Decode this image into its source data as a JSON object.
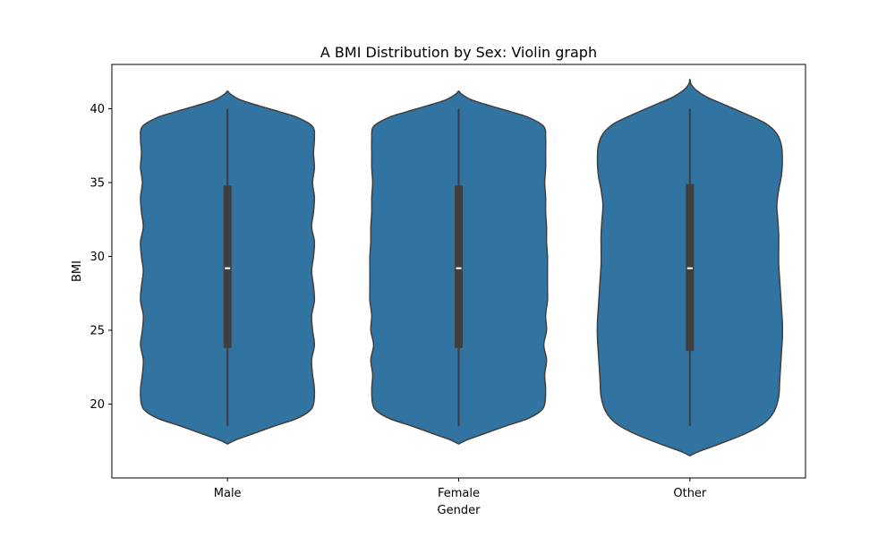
{
  "colors": {
    "violin_fill": "#3274a1",
    "violin_edge": "#3f3f3f",
    "box": "#3f3f3f",
    "median": "#ffffff",
    "axes": "#000000"
  },
  "chart_data": {
    "type": "violin",
    "title": "A BMI Distribution by Sex: Violin graph",
    "xlabel": "Gender",
    "ylabel": "BMI",
    "categories": [
      "Male",
      "Female",
      "Other"
    ],
    "ylim": [
      15.0,
      43.0
    ],
    "yticks": [
      20,
      25,
      30,
      35,
      40
    ],
    "grid": false,
    "series": [
      {
        "category": "Male",
        "whisker": [
          18.5,
          40.0
        ],
        "q1": 23.8,
        "median": 29.2,
        "q3": 34.8,
        "extent": [
          17.3,
          41.2
        ],
        "density": [
          [
            17.3,
            0.0
          ],
          [
            17.6,
            0.1
          ],
          [
            18.0,
            0.28
          ],
          [
            18.5,
            0.5
          ],
          [
            19.0,
            0.74
          ],
          [
            19.5,
            0.88
          ],
          [
            20.0,
            0.93
          ],
          [
            21.0,
            0.94
          ],
          [
            22.0,
            0.92
          ],
          [
            23.0,
            0.91
          ],
          [
            24.0,
            0.94
          ],
          [
            25.0,
            0.92
          ],
          [
            26.0,
            0.91
          ],
          [
            27.0,
            0.94
          ],
          [
            28.0,
            0.93
          ],
          [
            29.0,
            0.91
          ],
          [
            30.0,
            0.93
          ],
          [
            31.0,
            0.94
          ],
          [
            32.0,
            0.91
          ],
          [
            33.0,
            0.93
          ],
          [
            34.0,
            0.94
          ],
          [
            35.0,
            0.92
          ],
          [
            36.0,
            0.94
          ],
          [
            37.0,
            0.93
          ],
          [
            38.0,
            0.94
          ],
          [
            38.8,
            0.92
          ],
          [
            39.4,
            0.76
          ],
          [
            39.8,
            0.56
          ],
          [
            40.2,
            0.34
          ],
          [
            40.6,
            0.14
          ],
          [
            41.0,
            0.03
          ],
          [
            41.2,
            0.0
          ]
        ]
      },
      {
        "category": "Female",
        "whisker": [
          18.5,
          40.0
        ],
        "q1": 23.8,
        "median": 29.2,
        "q3": 34.8,
        "extent": [
          17.3,
          41.2
        ],
        "density": [
          [
            17.3,
            0.0
          ],
          [
            17.6,
            0.1
          ],
          [
            18.0,
            0.28
          ],
          [
            18.5,
            0.5
          ],
          [
            19.0,
            0.74
          ],
          [
            19.5,
            0.88
          ],
          [
            20.0,
            0.93
          ],
          [
            21.0,
            0.94
          ],
          [
            22.0,
            0.93
          ],
          [
            23.0,
            0.95
          ],
          [
            24.0,
            0.92
          ],
          [
            25.0,
            0.95
          ],
          [
            26.0,
            0.94
          ],
          [
            27.0,
            0.96
          ],
          [
            28.0,
            0.96
          ],
          [
            29.0,
            0.96
          ],
          [
            30.0,
            0.96
          ],
          [
            31.0,
            0.95
          ],
          [
            32.0,
            0.95
          ],
          [
            33.0,
            0.94
          ],
          [
            34.0,
            0.94
          ],
          [
            35.0,
            0.93
          ],
          [
            36.0,
            0.94
          ],
          [
            37.0,
            0.94
          ],
          [
            38.0,
            0.94
          ],
          [
            38.8,
            0.92
          ],
          [
            39.4,
            0.76
          ],
          [
            39.8,
            0.56
          ],
          [
            40.2,
            0.34
          ],
          [
            40.6,
            0.14
          ],
          [
            41.0,
            0.03
          ],
          [
            41.2,
            0.0
          ]
        ]
      },
      {
        "category": "Other",
        "whisker": [
          18.5,
          40.0
        ],
        "q1": 23.6,
        "median": 29.2,
        "q3": 34.9,
        "extent": [
          16.5,
          42.0
        ],
        "density": [
          [
            16.5,
            0.0
          ],
          [
            16.8,
            0.1
          ],
          [
            17.3,
            0.32
          ],
          [
            18.0,
            0.6
          ],
          [
            18.7,
            0.8
          ],
          [
            19.5,
            0.91
          ],
          [
            20.5,
            0.96
          ],
          [
            21.5,
            0.97
          ],
          [
            22.5,
            0.98
          ],
          [
            23.5,
            0.99
          ],
          [
            24.5,
            1.0
          ],
          [
            25.5,
            1.0
          ],
          [
            26.5,
            0.99
          ],
          [
            27.5,
            0.98
          ],
          [
            28.5,
            0.97
          ],
          [
            29.5,
            0.96
          ],
          [
            30.5,
            0.96
          ],
          [
            31.5,
            0.96
          ],
          [
            32.5,
            0.95
          ],
          [
            33.5,
            0.94
          ],
          [
            34.5,
            0.96
          ],
          [
            35.5,
            0.99
          ],
          [
            36.5,
            1.0
          ],
          [
            37.5,
            0.99
          ],
          [
            38.3,
            0.94
          ],
          [
            39.0,
            0.82
          ],
          [
            39.6,
            0.62
          ],
          [
            40.2,
            0.4
          ],
          [
            40.8,
            0.18
          ],
          [
            41.3,
            0.06
          ],
          [
            41.7,
            0.01
          ],
          [
            42.0,
            0.0
          ]
        ]
      }
    ]
  }
}
